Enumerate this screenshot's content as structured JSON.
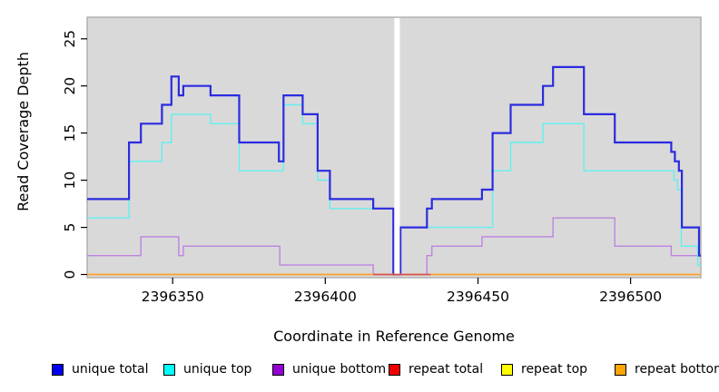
{
  "figure": {
    "xlabel": "Coordinate in Reference Genome",
    "ylabel": "Read Coverage Depth"
  },
  "chart_data": {
    "type": "line",
    "subtype": "step-coverage-plot",
    "title": "",
    "xlabel": "Coordinate in Reference Genome",
    "ylabel": "Read Coverage Depth",
    "xlim": [
      2396322,
      2396523
    ],
    "ylim": [
      0,
      27.3
    ],
    "x_ticks": [
      2396350,
      2396400,
      2396450,
      2396500
    ],
    "y_ticks": [
      0,
      5,
      10,
      15,
      20,
      25
    ],
    "grid": "off",
    "panel_background": "#d9d9d9",
    "panel_border_color": "#b0b0b0",
    "masked_region": {
      "from": 2396422.6,
      "to": 2396424.4,
      "color": "#ffffff"
    },
    "series": [
      {
        "name": "unique total",
        "legend_color": "#0000ee",
        "line_color": "#2b2be0",
        "line_width": 2.2,
        "x_end": 2396523,
        "points": [
          [
            2396322,
            8
          ],
          [
            2396335.7,
            14
          ],
          [
            2396339.6,
            16
          ],
          [
            2396346.5,
            18
          ],
          [
            2396349.6,
            21
          ],
          [
            2396352,
            19
          ],
          [
            2396353.5,
            20
          ],
          [
            2396362.4,
            19
          ],
          [
            2396371.8,
            14
          ],
          [
            2396384.8,
            12
          ],
          [
            2396386.3,
            19
          ],
          [
            2396392.6,
            17
          ],
          [
            2396397.5,
            11
          ],
          [
            2396401.5,
            8
          ],
          [
            2396415.7,
            7
          ],
          [
            2396422.3,
            0
          ],
          [
            2396424.6,
            5
          ],
          [
            2396433.3,
            7
          ],
          [
            2396434.9,
            8
          ],
          [
            2396451.3,
            9
          ],
          [
            2396454.8,
            15
          ],
          [
            2396460.7,
            18
          ],
          [
            2396471.3,
            20
          ],
          [
            2396474.6,
            22
          ],
          [
            2396484.7,
            17
          ],
          [
            2396494.8,
            14
          ],
          [
            2396513.3,
            13
          ],
          [
            2396514.5,
            12
          ],
          [
            2396515.8,
            11
          ],
          [
            2396516.8,
            5
          ],
          [
            2396522.4,
            2
          ]
        ]
      },
      {
        "name": "unique top",
        "legend_color": "#00ffff",
        "line_color": "#63f0f0",
        "line_width": 1.4,
        "x_end": 2396523,
        "points": [
          [
            2396322,
            6
          ],
          [
            2396335.7,
            12
          ],
          [
            2396346.5,
            14
          ],
          [
            2396349.6,
            17
          ],
          [
            2396362.4,
            16
          ],
          [
            2396371.8,
            11
          ],
          [
            2396386.3,
            18
          ],
          [
            2396392.6,
            16
          ],
          [
            2396397.5,
            10
          ],
          [
            2396401.5,
            7
          ],
          [
            2396422.3,
            0
          ],
          [
            2396424.6,
            5
          ],
          [
            2396454.8,
            11
          ],
          [
            2396460.7,
            14
          ],
          [
            2396471.3,
            16
          ],
          [
            2396484.7,
            11
          ],
          [
            2396514.2,
            10
          ],
          [
            2396515.4,
            9
          ],
          [
            2396516.6,
            3
          ],
          [
            2396522,
            1
          ]
        ]
      },
      {
        "name": "unique bottom",
        "legend_color": "#9400d3",
        "line_color": "#bd83e1",
        "line_width": 1.4,
        "x_end": 2396523,
        "points": [
          [
            2396322,
            2
          ],
          [
            2396339.6,
            4
          ],
          [
            2396352,
            2
          ],
          [
            2396353.5,
            3
          ],
          [
            2396385.1,
            1
          ],
          [
            2396415.7,
            0
          ],
          [
            2396433.3,
            2
          ],
          [
            2396434.9,
            3
          ],
          [
            2396451.3,
            4
          ],
          [
            2396474.6,
            6
          ],
          [
            2396494.8,
            3
          ],
          [
            2396513.3,
            2
          ]
        ]
      },
      {
        "name": "repeat total",
        "legend_color": "#ee0000",
        "line_color": "#d44a5a",
        "line_width": 1.4,
        "x_end": 2396434.5,
        "note": "zero depth across plot; visible above orange only between 2396416 and 2396434",
        "points": [
          [
            2396415.7,
            0
          ]
        ]
      },
      {
        "name": "repeat top",
        "legend_color": "#ffff00",
        "line_color": "#ffff00",
        "line_width": 1.2,
        "x_end": 2396523,
        "note": "zero depth across plot, hidden under repeat bottom",
        "points": [
          [
            2396322,
            0
          ]
        ]
      },
      {
        "name": "repeat bottom",
        "legend_color": "#ffa500",
        "line_color": "#ff9d2e",
        "line_width": 1.8,
        "x_end": 2396523,
        "note": "zero depth across entire plot",
        "points": [
          [
            2396322,
            0
          ]
        ]
      }
    ],
    "legend": {
      "position": "bottom",
      "items": [
        {
          "label": "unique total",
          "color": "#0000ee"
        },
        {
          "label": "unique top",
          "color": "#00ffff"
        },
        {
          "label": "unique bottom",
          "color": "#9400d3"
        },
        {
          "label": "repeat total",
          "color": "#ee0000"
        },
        {
          "label": "repeat top",
          "color": "#ffff00"
        },
        {
          "label": "repeat bottom",
          "color": "#ffa500"
        }
      ]
    }
  }
}
